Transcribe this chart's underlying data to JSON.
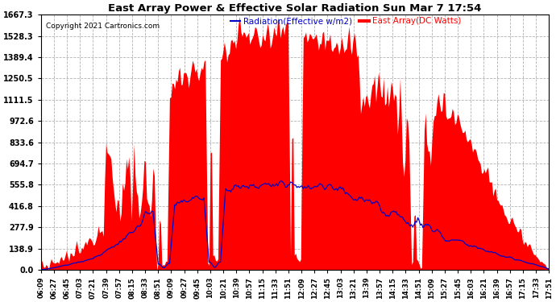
{
  "title": "East Array Power & Effective Solar Radiation Sun Mar 7 17:54",
  "copyright": "Copyright 2021 Cartronics.com",
  "legend_radiation": "Radiation(Effective w/m2)",
  "legend_east": "East Array(DC Watts)",
  "y_ticks": [
    0.0,
    138.9,
    277.9,
    416.8,
    555.8,
    694.7,
    833.6,
    972.6,
    1111.5,
    1250.5,
    1389.4,
    1528.3,
    1667.3
  ],
  "ymax": 1667.3,
  "ymin": 0.0,
  "background_color": "#ffffff",
  "radiation_color": "#ff0000",
  "east_color": "#0000cc",
  "grid_color": "#aaaaaa",
  "title_color": "#000000",
  "x_labels": [
    "06:09",
    "06:27",
    "06:45",
    "07:03",
    "07:21",
    "07:39",
    "07:57",
    "08:15",
    "08:33",
    "08:51",
    "09:09",
    "09:27",
    "09:45",
    "10:03",
    "10:21",
    "10:39",
    "10:57",
    "11:15",
    "11:33",
    "11:51",
    "12:09",
    "12:27",
    "12:45",
    "13:03",
    "13:21",
    "13:39",
    "13:57",
    "14:15",
    "14:33",
    "14:51",
    "15:09",
    "15:27",
    "15:45",
    "16:03",
    "16:21",
    "16:39",
    "16:57",
    "17:15",
    "17:33",
    "17:51"
  ],
  "n_points": 400
}
